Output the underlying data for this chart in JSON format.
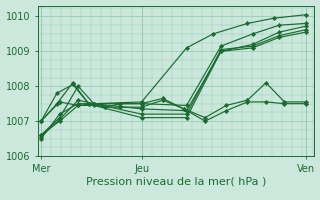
{
  "xlabel": "Pression niveau de la mer( hPa )",
  "bg_color": "#cce8dc",
  "grid_color": "#99ccb8",
  "line_color": "#1a6b30",
  "marker_color": "#1a6b30",
  "xtick_labels": [
    "Mer",
    "Jeu",
    "Ven"
  ],
  "xtick_positions": [
    0.0,
    0.38,
    1.0
  ],
  "ylim": [
    1006.0,
    1010.3
  ],
  "yticks": [
    1006,
    1007,
    1008,
    1009,
    1010
  ],
  "line_data": [
    {
      "x": [
        0.0,
        0.07,
        0.14,
        0.2,
        0.38,
        0.55,
        0.65,
        0.78,
        0.88,
        1.0
      ],
      "y": [
        1007.0,
        1007.55,
        1007.45,
        1007.5,
        1007.55,
        1009.1,
        1009.5,
        1009.8,
        1009.95,
        1010.05
      ]
    },
    {
      "x": [
        0.0,
        0.07,
        0.14,
        0.2,
        0.38,
        0.55,
        0.68,
        0.8,
        0.9,
        1.0
      ],
      "y": [
        1006.5,
        1007.2,
        1007.5,
        1007.5,
        1007.5,
        1007.45,
        1009.15,
        1009.5,
        1009.75,
        1009.8
      ]
    },
    {
      "x": [
        0.0,
        0.07,
        0.14,
        0.2,
        0.38,
        0.55,
        0.68,
        0.8,
        0.9,
        1.0
      ],
      "y": [
        1006.6,
        1007.1,
        1008.0,
        1007.5,
        1007.35,
        1007.3,
        1009.0,
        1009.2,
        1009.55,
        1009.72
      ]
    },
    {
      "x": [
        0.0,
        0.07,
        0.14,
        0.2,
        0.38,
        0.55,
        0.68,
        0.8,
        0.9,
        1.0
      ],
      "y": [
        1006.55,
        1007.05,
        1007.6,
        1007.5,
        1007.2,
        1007.2,
        1009.05,
        1009.15,
        1009.45,
        1009.62
      ]
    },
    {
      "x": [
        0.0,
        0.07,
        0.14,
        0.2,
        0.38,
        0.55,
        0.68,
        0.8,
        0.9,
        1.0
      ],
      "y": [
        1006.6,
        1007.0,
        1007.45,
        1007.45,
        1007.1,
        1007.1,
        1009.0,
        1009.1,
        1009.4,
        1009.55
      ]
    },
    {
      "x": [
        0.0,
        0.06,
        0.12,
        0.18,
        0.24,
        0.3,
        0.38,
        0.46,
        0.54,
        0.62,
        0.7,
        0.78,
        0.85,
        0.92,
        1.0
      ],
      "y": [
        1007.0,
        1007.8,
        1008.05,
        1007.5,
        1007.4,
        1007.5,
        1007.5,
        1007.65,
        1007.35,
        1007.1,
        1007.45,
        1007.6,
        1008.1,
        1007.55,
        1007.55
      ]
    },
    {
      "x": [
        0.0,
        0.06,
        0.12,
        0.18,
        0.24,
        0.3,
        0.38,
        0.46,
        0.54,
        0.62,
        0.7,
        0.78,
        0.85,
        0.92,
        1.0
      ],
      "y": [
        1007.0,
        1007.5,
        1008.1,
        1007.5,
        1007.4,
        1007.4,
        1007.4,
        1007.6,
        1007.35,
        1007.0,
        1007.3,
        1007.55,
        1007.55,
        1007.5,
        1007.5
      ]
    }
  ],
  "font_color": "#1a6b30",
  "font_size": 7,
  "xlabel_fontsize": 8,
  "ylabel_fontsize": 7
}
